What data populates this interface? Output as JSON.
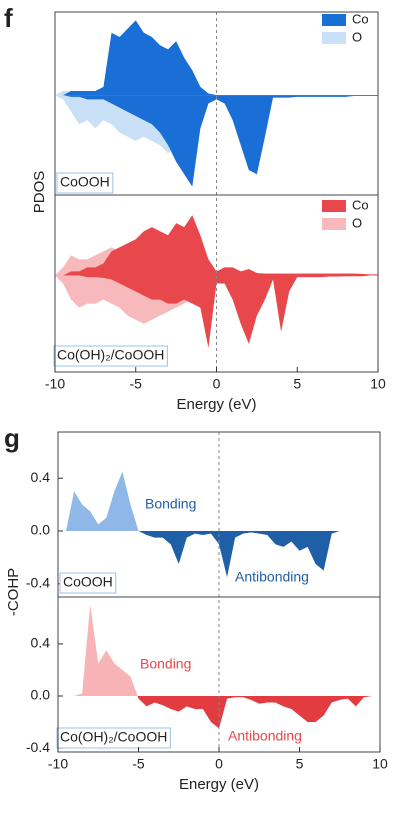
{
  "chart_data": [
    {
      "type": "pdos",
      "panel": "f",
      "xlabel": "Energy (eV)",
      "ylabel": "PDOS",
      "x": [
        -10,
        -9.5,
        -9,
        -8.5,
        -8,
        -7.5,
        -7,
        -6.5,
        -6,
        -5.5,
        -5,
        -4.5,
        -4,
        -3.5,
        -3,
        -2.5,
        -2,
        -1.5,
        -1,
        -0.5,
        0,
        0.5,
        1,
        1.5,
        2,
        2.5,
        3,
        3.5,
        4,
        4.5,
        5,
        5.5,
        6,
        6.5,
        7,
        7.5,
        8,
        8.5,
        9,
        9.5,
        10
      ],
      "xlim": [
        -10,
        10
      ],
      "xticks": [
        -10,
        -5,
        0,
        5,
        10
      ],
      "zero_line": true,
      "subplots": [
        {
          "label": "CoOOH",
          "ylim": [
            -1.2,
            1
          ],
          "series": [
            {
              "name": "Co",
              "color": "#1a6fd6",
              "values": [
                0,
                0,
                0.05,
                0.05,
                0.05,
                0.05,
                0.1,
                0.75,
                0.7,
                0.8,
                0.9,
                0.75,
                0.7,
                0.6,
                0.55,
                0.65,
                0.45,
                0.3,
                0.1,
                0.02,
                0,
                0,
                0,
                0,
                0,
                0,
                0,
                0,
                0,
                0,
                0,
                0,
                0,
                0,
                0,
                0,
                0,
                0,
                0,
                0,
                0
              ],
              "values_down": [
                0,
                0,
                -0.02,
                -0.02,
                -0.05,
                -0.05,
                -0.05,
                -0.1,
                -0.15,
                -0.2,
                -0.25,
                -0.3,
                -0.35,
                -0.45,
                -0.6,
                -0.8,
                -0.95,
                -1.1,
                -0.4,
                -0.1,
                -0.05,
                -0.1,
                -0.3,
                -0.6,
                -0.9,
                -0.95,
                -0.5,
                -0.03,
                -0.03,
                -0.03,
                -0.02,
                -0.02,
                -0.02,
                -0.02,
                -0.02,
                -0.02,
                -0.02,
                -0.01,
                -0.01,
                -0.01,
                -0.01
              ]
            },
            {
              "name": "O",
              "color": "#c9e0f7",
              "values": [
                0,
                0.05,
                0.05,
                0.05,
                0.05,
                0.05,
                0.05,
                0.3,
                0.35,
                0.4,
                0.45,
                0.4,
                0.35,
                0.3,
                0.3,
                0.3,
                0.25,
                0.15,
                0.05,
                0.02,
                0,
                0,
                0,
                0,
                0,
                0,
                0,
                0,
                0,
                0,
                0,
                0,
                0,
                0,
                0,
                0,
                0,
                0,
                0,
                0,
                0
              ],
              "values_down": [
                0,
                -0.05,
                -0.2,
                -0.35,
                -0.3,
                -0.4,
                -0.3,
                -0.35,
                -0.45,
                -0.5,
                -0.55,
                -0.5,
                -0.55,
                -0.6,
                -0.7,
                -0.6,
                -0.55,
                -0.5,
                -0.2,
                -0.05,
                -0.02,
                -0.05,
                -0.1,
                -0.2,
                -0.35,
                -0.3,
                -0.1,
                -0.02,
                -0.02,
                -0.02,
                -0.01,
                -0.01,
                -0.01,
                -0.01,
                -0.01,
                -0.01,
                -0.01,
                0,
                0,
                0,
                0
              ]
            }
          ]
        },
        {
          "label": "Co(OH)₂/CoOOH",
          "ylim": [
            -1.2,
            1
          ],
          "series": [
            {
              "name": "Co",
              "color": "#e8474c",
              "values": [
                0,
                0,
                0.05,
                0.05,
                0.1,
                0.1,
                0.15,
                0.3,
                0.35,
                0.4,
                0.45,
                0.55,
                0.6,
                0.55,
                0.5,
                0.65,
                0.6,
                0.75,
                0.5,
                0.2,
                0.05,
                0.1,
                0.1,
                0.05,
                0.08,
                0.03,
                0.02,
                0.02,
                0.02,
                0.02,
                0.02,
                0.02,
                0.02,
                0.02,
                0.02,
                0.02,
                0.02,
                0.02,
                0.02,
                0.01,
                0.01
              ],
              "values_down": [
                0,
                0,
                0,
                0,
                -0.02,
                -0.02,
                -0.03,
                -0.05,
                -0.1,
                -0.15,
                -0.2,
                -0.25,
                -0.3,
                -0.3,
                -0.35,
                -0.35,
                -0.3,
                -0.35,
                -0.4,
                -0.9,
                -0.1,
                -0.1,
                -0.3,
                -0.6,
                -0.85,
                -0.5,
                -0.3,
                -0.05,
                -0.7,
                -0.2,
                -0.02,
                -0.02,
                -0.02,
                -0.02,
                -0.01,
                -0.01,
                -0.01,
                -0.01,
                -0.01,
                0,
                0
              ]
            },
            {
              "name": "O",
              "color": "#f7b9bb",
              "values": [
                0,
                0.1,
                0.25,
                0.2,
                0.2,
                0.25,
                0.3,
                0.35,
                0.3,
                0.35,
                0.35,
                0.4,
                0.35,
                0.35,
                0.3,
                0.3,
                0.35,
                0.3,
                0.25,
                0.1,
                0.05,
                0.05,
                0.1,
                0.05,
                0.05,
                0.03,
                0.03,
                0.03,
                0.03,
                0.03,
                0.03,
                0.03,
                0.03,
                0.03,
                0.03,
                0.03,
                0.03,
                0.03,
                0.02,
                0.02,
                0.02
              ],
              "values_down": [
                0,
                -0.1,
                -0.3,
                -0.4,
                -0.35,
                -0.35,
                -0.3,
                -0.35,
                -0.4,
                -0.5,
                -0.55,
                -0.6,
                -0.55,
                -0.5,
                -0.45,
                -0.4,
                -0.35,
                -0.3,
                -0.25,
                -0.1,
                -0.05,
                -0.05,
                -0.1,
                -0.15,
                -0.15,
                -0.1,
                -0.05,
                -0.03,
                -0.05,
                -0.03,
                -0.02,
                -0.02,
                -0.02,
                -0.02,
                -0.02,
                -0.02,
                -0.01,
                -0.01,
                -0.01,
                0,
                0
              ]
            }
          ]
        }
      ]
    },
    {
      "type": "cohp",
      "panel": "g",
      "xlabel": "Energy (eV)",
      "ylabel": "-COHP",
      "x": [
        -10,
        -9.5,
        -9,
        -8.5,
        -8,
        -7.5,
        -7,
        -6.5,
        -6,
        -5.5,
        -5,
        -4.5,
        -4,
        -3.5,
        -3,
        -2.5,
        -2,
        -1.5,
        -1,
        -0.5,
        0,
        0.5,
        1,
        1.5,
        2,
        2.5,
        3,
        3.5,
        4,
        4.5,
        5,
        5.5,
        6,
        6.5,
        7,
        7.5,
        8,
        8.5,
        9,
        9.5,
        10
      ],
      "xlim": [
        -10,
        10
      ],
      "xticks": [
        -10,
        -5,
        0,
        5,
        10
      ],
      "zero_line": true,
      "subplots": [
        {
          "label": "CoOOH",
          "ylim": [
            -0.5,
            0.75
          ],
          "yticks": [
            0.4,
            {
              "value": 0,
              "label": "0.0"
            },
            -0.4
          ],
          "series": [
            {
              "color": "#8fb8e8",
              "negative_color": "#1f5fa8",
              "values": [
                0,
                0,
                0.3,
                0.2,
                0.15,
                0.05,
                0.1,
                0.3,
                0.45,
                0.2,
                0,
                -0.03,
                -0.05,
                -0.05,
                -0.1,
                -0.25,
                -0.05,
                -0.02,
                -0.03,
                -0.02,
                -0.1,
                -0.35,
                -0.05,
                -0.02,
                -0.01,
                -0.02,
                -0.03,
                -0.1,
                -0.12,
                -0.08,
                -0.15,
                -0.12,
                -0.25,
                -0.3,
                -0.02,
                0,
                0,
                0,
                0,
                0,
                0
              ]
            }
          ],
          "annotations": [
            {
              "text": "Bonding",
              "color": "#1f5fa8"
            },
            {
              "text": "Antibonding",
              "color": "#1f5fa8"
            }
          ]
        },
        {
          "label": "Co(OH)₂/CoOOH",
          "ylim": [
            -0.43,
            0.76
          ],
          "yticks": [
            0.4,
            {
              "value": 0,
              "label": "0.0"
            },
            -0.4
          ],
          "series": [
            {
              "color": "#f7b3b5",
              "negative_color": "#e23b40",
              "values": [
                0,
                0,
                0,
                0.02,
                0.7,
                0.25,
                0.35,
                0.25,
                0.2,
                0.15,
                -0.02,
                -0.08,
                -0.05,
                -0.07,
                -0.1,
                -0.12,
                -0.08,
                -0.1,
                -0.1,
                -0.2,
                -0.25,
                -0.02,
                -0.01,
                -0.01,
                -0.03,
                -0.06,
                -0.05,
                -0.05,
                -0.08,
                -0.1,
                -0.15,
                -0.2,
                -0.2,
                -0.15,
                -0.05,
                -0.03,
                -0.02,
                -0.08,
                -0.01,
                0,
                0
              ]
            }
          ],
          "annotations": [
            {
              "text": "Bonding",
              "color": "#e8474c"
            },
            {
              "text": "Antibonding",
              "color": "#e8474c"
            }
          ]
        }
      ]
    }
  ]
}
